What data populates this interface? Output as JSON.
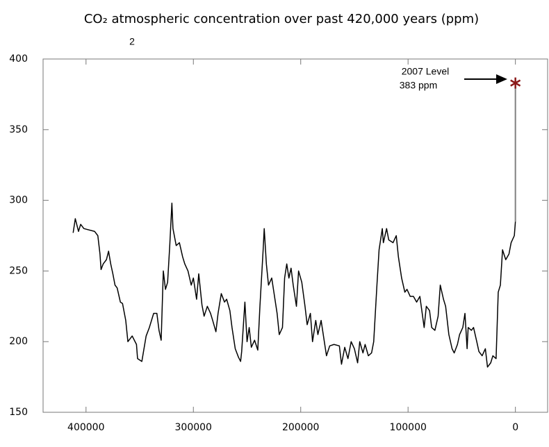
{
  "chart_data": {
    "type": "line",
    "title": "CO₂ atmospheric concentration over past 420,000 years (ppm)",
    "artifact_text": "2",
    "xlim": [
      440000,
      -30000
    ],
    "ylim": [
      150,
      400
    ],
    "xticks": [
      400000,
      300000,
      200000,
      100000,
      0
    ],
    "yticks": [
      150,
      200,
      250,
      300,
      350,
      400
    ],
    "series": [
      {
        "color": "#000000",
        "x": [
          412000,
          410000,
          407000,
          405000,
          402000,
          392000,
          389000,
          387000,
          386000,
          384000,
          381000,
          379000,
          377000,
          375000,
          373000,
          371000,
          368000,
          366000,
          363000,
          361000,
          357000,
          353000,
          352000,
          348000,
          344000,
          341000,
          337000,
          334000,
          332000,
          330000,
          328000,
          326000,
          324000,
          322000,
          320000,
          319000,
          316000,
          313000,
          310000,
          308000,
          305000,
          302000,
          300000,
          297000,
          295000,
          292000,
          290000,
          287000,
          284000,
          282000,
          279000,
          277000,
          274000,
          271000,
          269000,
          266000,
          264000,
          261000,
          258000,
          256000,
          255000,
          252000,
          250000,
          248000,
          246000,
          243000,
          240000,
          238000,
          235000,
          234000,
          232000,
          230000,
          227000,
          225000,
          222000,
          220000,
          217000,
          215000,
          213000,
          211000,
          209000,
          207000,
          204000,
          202000,
          199000,
          196000,
          194000,
          191000,
          189000,
          186000,
          184000,
          181000,
          178000,
          176000,
          173000,
          169000,
          164000,
          162000,
          159000,
          156000,
          153000,
          150000,
          147000,
          145000,
          142000,
          140000,
          137000,
          134000,
          132000,
          129000,
          127000,
          125000,
          124000,
          123000,
          120000,
          118000,
          114000,
          111000,
          109000,
          106000,
          103000,
          101000,
          98000,
          95000,
          92000,
          89000,
          85000,
          83000,
          80000,
          78000,
          75000,
          72000,
          70000,
          67000,
          65000,
          62000,
          59000,
          57000,
          54000,
          52000,
          49000,
          47000,
          45000,
          44000,
          41000,
          39000,
          36000,
          34000,
          31000,
          28000,
          26000,
          23000,
          21000,
          18000,
          16000,
          14000,
          12000,
          9000,
          6000,
          4000,
          1000,
          0
        ],
        "values": [
          277,
          287,
          278,
          283,
          280,
          278,
          275,
          262,
          251,
          255,
          258,
          264,
          255,
          248,
          240,
          238,
          228,
          227,
          215,
          200,
          204,
          198,
          188,
          186,
          204,
          210,
          220,
          220,
          208,
          201,
          250,
          237,
          242,
          268,
          298,
          280,
          268,
          270,
          260,
          255,
          250,
          240,
          245,
          230,
          248,
          226,
          218,
          225,
          220,
          215,
          207,
          220,
          234,
          228,
          230,
          222,
          210,
          195,
          189,
          186,
          193,
          228,
          200,
          210,
          196,
          201,
          194,
          225,
          265,
          280,
          255,
          240,
          245,
          235,
          220,
          205,
          210,
          245,
          255,
          245,
          252,
          240,
          225,
          250,
          242,
          225,
          212,
          220,
          200,
          215,
          205,
          215,
          200,
          190,
          197,
          198,
          197,
          184,
          196,
          188,
          200,
          195,
          185,
          200,
          192,
          198,
          190,
          192,
          200,
          240,
          265,
          275,
          280,
          270,
          280,
          272,
          270,
          275,
          260,
          245,
          235,
          237,
          232,
          232,
          228,
          232,
          210,
          225,
          222,
          210,
          208,
          218,
          240,
          230,
          225,
          205,
          195,
          192,
          198,
          205,
          210,
          220,
          195,
          210,
          208,
          210,
          200,
          193,
          190,
          195,
          182,
          185,
          190,
          188,
          235,
          240,
          265,
          258,
          262,
          270,
          275,
          285
        ]
      },
      {
        "color": "#808080",
        "x": [
          0,
          0
        ],
        "values": [
          285,
          383
        ]
      }
    ],
    "annotation": {
      "lines": [
        "2007 Level",
        "383 ppm"
      ],
      "x": 0,
      "y": 383,
      "color": "#8b1a1a"
    }
  }
}
